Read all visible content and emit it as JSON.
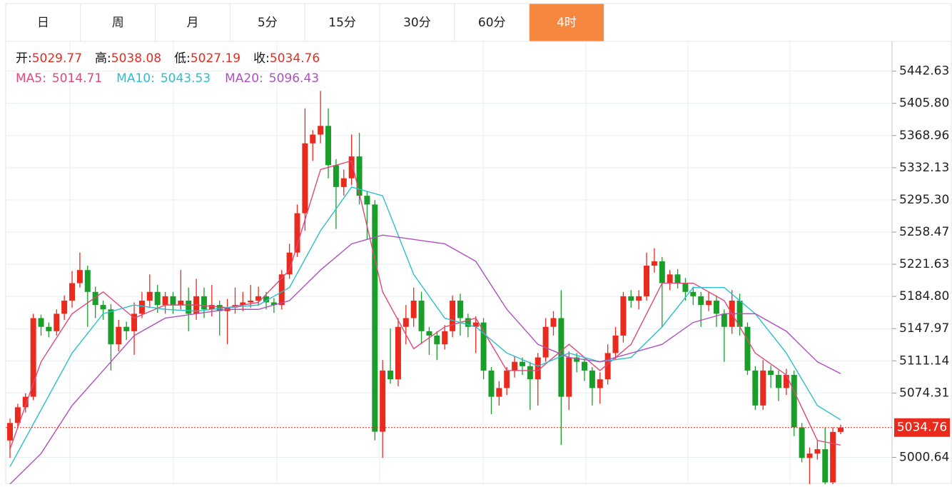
{
  "tabs": {
    "items": [
      "日",
      "周",
      "月",
      "5分",
      "15分",
      "30分",
      "60分",
      "4时"
    ],
    "active": 7
  },
  "chart_data": {
    "type": "candlestick",
    "ohlc_labels": [
      "开:",
      "高:",
      "低:",
      "收:"
    ],
    "up_color": "#eb2a1e",
    "down_color": "#1a9e2a",
    "ylim": [
      4970,
      5475
    ],
    "yticks": [
      5442.63,
      {
        "value": 5405.8,
        "label": "5405.80"
      },
      5368.96,
      5332.13,
      {
        "value": 5295.3,
        "label": "5295.30"
      },
      5258.47,
      5221.63,
      {
        "value": 5184.8,
        "label": "5184.80"
      },
      5147.97,
      5111.14,
      5074.31,
      5000.64
    ],
    "grid": true,
    "ohlc": [
      [
        5020,
        5045,
        5000,
        5040
      ],
      [
        5040,
        5062,
        5035,
        5058
      ],
      [
        5058,
        5074,
        5052,
        5070
      ],
      [
        5070,
        5165,
        5066,
        5160
      ],
      [
        5160,
        5164,
        5140,
        5150
      ],
      [
        5150,
        5155,
        5138,
        5145
      ],
      [
        5145,
        5170,
        5140,
        5165
      ],
      [
        5165,
        5186,
        5158,
        5180
      ],
      [
        5180,
        5214,
        5172,
        5200
      ],
      [
        5200,
        5235,
        5195,
        5215
      ],
      [
        5215,
        5220,
        5150,
        5190
      ],
      [
        5190,
        5196,
        5160,
        5175
      ],
      [
        5175,
        5180,
        5158,
        5170
      ],
      [
        5170,
        5176,
        5100,
        5130
      ],
      [
        5130,
        5158,
        5122,
        5150
      ],
      [
        5150,
        5156,
        5135,
        5145
      ],
      [
        5145,
        5178,
        5118,
        5165
      ],
      [
        5165,
        5190,
        5160,
        5180
      ],
      [
        5180,
        5210,
        5172,
        5190
      ],
      [
        5190,
        5198,
        5166,
        5175
      ],
      [
        5175,
        5190,
        5165,
        5185
      ],
      [
        5185,
        5190,
        5165,
        5175
      ],
      [
        5175,
        5215,
        5170,
        5180
      ],
      [
        5180,
        5195,
        5145,
        5165
      ],
      [
        5165,
        5205,
        5158,
        5185
      ],
      [
        5185,
        5195,
        5160,
        5170
      ],
      [
        5170,
        5198,
        5162,
        5175
      ],
      [
        5175,
        5180,
        5140,
        5168
      ],
      [
        5168,
        5182,
        5130,
        5172
      ],
      [
        5172,
        5195,
        5165,
        5175
      ],
      [
        5175,
        5190,
        5168,
        5178
      ],
      [
        5178,
        5198,
        5172,
        5180
      ],
      [
        5180,
        5196,
        5174,
        5185
      ],
      [
        5185,
        5190,
        5170,
        5178
      ],
      [
        5178,
        5183,
        5166,
        5175
      ],
      [
        5175,
        5215,
        5170,
        5210
      ],
      [
        5210,
        5245,
        5205,
        5235
      ],
      [
        5235,
        5290,
        5230,
        5280
      ],
      [
        5280,
        5400,
        5260,
        5360
      ],
      [
        5360,
        5375,
        5340,
        5370
      ],
      [
        5370,
        5420,
        5360,
        5380
      ],
      [
        5380,
        5400,
        5320,
        5335
      ],
      [
        5335,
        5342,
        5262,
        5310
      ],
      [
        5310,
        5330,
        5300,
        5320
      ],
      [
        5320,
        5370,
        5312,
        5345
      ],
      [
        5345,
        5372,
        5290,
        5300
      ],
      [
        5300,
        5305,
        5250,
        5290
      ],
      [
        5290,
        5295,
        5020,
        5030
      ],
      [
        5030,
        5112,
        5000,
        5100
      ],
      [
        5100,
        5148,
        5085,
        5090
      ],
      [
        5090,
        5160,
        5082,
        5150
      ],
      [
        5150,
        5175,
        5130,
        5160
      ],
      [
        5160,
        5195,
        5150,
        5180
      ],
      [
        5180,
        5190,
        5130,
        5145
      ],
      [
        5145,
        5150,
        5118,
        5140
      ],
      [
        5140,
        5145,
        5112,
        5130
      ],
      [
        5130,
        5152,
        5124,
        5145
      ],
      [
        5145,
        5186,
        5138,
        5180
      ],
      [
        5180,
        5188,
        5140,
        5160
      ],
      [
        5160,
        5165,
        5138,
        5150
      ],
      [
        5150,
        5162,
        5120,
        5155
      ],
      [
        5155,
        5160,
        5090,
        5100
      ],
      [
        5100,
        5104,
        5050,
        5070
      ],
      [
        5070,
        5088,
        5060,
        5080
      ],
      [
        5080,
        5104,
        5072,
        5100
      ],
      [
        5100,
        5116,
        5092,
        5110
      ],
      [
        5110,
        5115,
        5095,
        5105
      ],
      [
        5105,
        5110,
        5055,
        5090
      ],
      [
        5090,
        5120,
        5060,
        5115
      ],
      [
        5115,
        5160,
        5110,
        5150
      ],
      [
        5150,
        5168,
        5140,
        5160
      ],
      [
        5160,
        5192,
        5015,
        5070
      ],
      [
        5070,
        5122,
        5055,
        5115
      ],
      [
        5115,
        5120,
        5098,
        5110
      ],
      [
        5110,
        5114,
        5088,
        5100
      ],
      [
        5100,
        5104,
        5060,
        5080
      ],
      [
        5080,
        5098,
        5062,
        5090
      ],
      [
        5090,
        5130,
        5084,
        5120
      ],
      [
        5120,
        5150,
        5112,
        5140
      ],
      [
        5140,
        5190,
        5132,
        5185
      ],
      [
        5185,
        5192,
        5172,
        5180
      ],
      [
        5180,
        5192,
        5170,
        5185
      ],
      [
        5185,
        5235,
        5180,
        5220
      ],
      [
        5220,
        5240,
        5212,
        5225
      ],
      [
        5225,
        5230,
        5150,
        5200
      ],
      [
        5200,
        5215,
        5192,
        5210
      ],
      [
        5210,
        5216,
        5194,
        5200
      ],
      [
        5200,
        5206,
        5180,
        5190
      ],
      [
        5190,
        5196,
        5175,
        5185
      ],
      [
        5185,
        5190,
        5150,
        5175
      ],
      [
        5175,
        5190,
        5168,
        5180
      ],
      [
        5180,
        5186,
        5150,
        5165
      ],
      [
        5165,
        5170,
        5110,
        5150
      ],
      [
        5150,
        5192,
        5142,
        5180
      ],
      [
        5180,
        5188,
        5140,
        5150
      ],
      [
        5150,
        5155,
        5095,
        5100
      ],
      [
        5100,
        5105,
        5055,
        5060
      ],
      [
        5060,
        5112,
        5055,
        5100
      ],
      [
        5100,
        5106,
        5080,
        5095
      ],
      [
        5095,
        5100,
        5065,
        5080
      ],
      [
        5080,
        5102,
        5072,
        5095
      ],
      [
        5095,
        5100,
        5025,
        5035
      ],
      [
        5035,
        5040,
        4995,
        5000
      ],
      [
        5000,
        5012,
        4970,
        5005
      ],
      [
        5005,
        5020,
        4998,
        5010
      ],
      [
        5010,
        5035,
        4970,
        4972
      ],
      [
        4972,
        5035,
        4970,
        5029.77
      ],
      [
        5029.77,
        5038.08,
        5027.19,
        5034.76
      ]
    ],
    "series": [
      {
        "name": "MA5:",
        "color": "#e0487a",
        "current": 5014.71,
        "x": [
          0,
          4,
          8,
          12,
          16,
          20,
          24,
          28,
          32,
          36,
          40,
          44,
          48,
          52,
          56,
          60,
          64,
          68,
          72,
          76,
          80,
          84,
          88,
          92,
          96,
          100,
          104,
          107
        ],
        "values": [
          5010,
          5110,
          5165,
          5190,
          5160,
          5175,
          5175,
          5172,
          5178,
          5215,
          5330,
          5340,
          5190,
          5125,
          5150,
          5160,
          5100,
          5100,
          5130,
          5100,
          5130,
          5200,
          5200,
          5180,
          5120,
          5095,
          5020,
          5014.71
        ]
      },
      {
        "name": "MA10:",
        "color": "#2bbfcf",
        "current": 5043.53,
        "x": [
          0,
          4,
          8,
          12,
          16,
          20,
          24,
          28,
          32,
          36,
          40,
          44,
          48,
          52,
          56,
          60,
          64,
          68,
          72,
          76,
          80,
          84,
          88,
          92,
          96,
          100,
          104,
          107
        ],
        "values": [
          4990,
          5055,
          5120,
          5165,
          5175,
          5170,
          5168,
          5172,
          5175,
          5195,
          5260,
          5310,
          5300,
          5210,
          5160,
          5150,
          5120,
          5105,
          5120,
          5110,
          5115,
          5150,
          5195,
          5195,
          5165,
          5120,
          5060,
          5043.53
        ]
      },
      {
        "name": "MA20:",
        "color": "#b050c0",
        "current": 5096.43,
        "x": [
          0,
          4,
          8,
          12,
          16,
          20,
          24,
          28,
          32,
          36,
          40,
          44,
          48,
          52,
          56,
          60,
          64,
          68,
          72,
          76,
          80,
          84,
          88,
          92,
          96,
          100,
          104,
          107
        ],
        "values": [
          4970,
          5005,
          5060,
          5100,
          5140,
          5160,
          5165,
          5170,
          5170,
          5180,
          5215,
          5245,
          5255,
          5250,
          5245,
          5225,
          5170,
          5130,
          5115,
          5110,
          5120,
          5130,
          5155,
          5165,
          5165,
          5145,
          5110,
          5096.43
        ]
      }
    ]
  }
}
